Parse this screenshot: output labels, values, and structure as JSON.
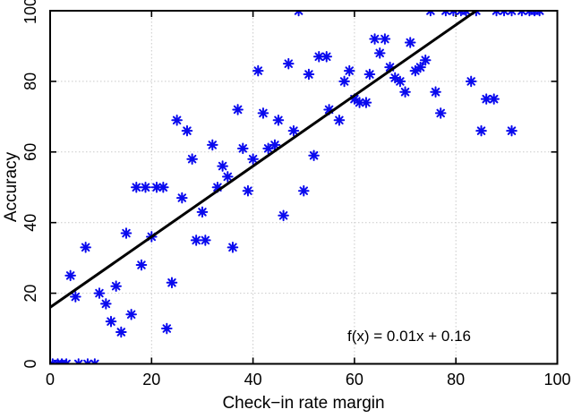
{
  "figure": {
    "xlabel": "Check−in rate margin",
    "ylabel": "Accuracy",
    "annotation": "f(x) = 0.01x + 0.16",
    "colors": {
      "marker": "#0A0AEE",
      "fit_line": "#000000",
      "grid": "#C9C9C9",
      "axis": "#000000",
      "background": "#FFFFFF"
    }
  },
  "chart_data": {
    "type": "scatter",
    "title": "",
    "xlabel": "Check−in rate margin",
    "ylabel": "Accuracy",
    "xlim": [
      0,
      100
    ],
    "ylim": [
      0,
      100
    ],
    "x_tick_values": [
      0,
      20,
      40,
      60,
      80,
      100
    ],
    "y_tick_values": [
      0,
      20,
      40,
      60,
      80,
      100
    ],
    "x_tick_labels": [
      "0",
      "20",
      "40",
      "60",
      "80",
      "100"
    ],
    "y_tick_labels": [
      "0",
      "20",
      "40",
      "60",
      "80",
      "100"
    ],
    "grid": true,
    "legend": "none",
    "marker": "asterisk",
    "annotation": {
      "text": "f(x) = 0.01x + 0.16",
      "x": 71,
      "y": 8
    },
    "fit_line": {
      "equation": "f(x) = 0.01x + 0.16",
      "x1": 0,
      "y1": 16,
      "x2": 84,
      "y2": 100
    },
    "points": [
      [
        0.5,
        0
      ],
      [
        1.5,
        0
      ],
      [
        2.3,
        0
      ],
      [
        3.2,
        0
      ],
      [
        5.6,
        0
      ],
      [
        7.4,
        0
      ],
      [
        8.8,
        0
      ],
      [
        4,
        25
      ],
      [
        5,
        19
      ],
      [
        7,
        33
      ],
      [
        9.7,
        20
      ],
      [
        11,
        17
      ],
      [
        12,
        12
      ],
      [
        13,
        22
      ],
      [
        14,
        9
      ],
      [
        16,
        14
      ],
      [
        18,
        28
      ],
      [
        23,
        10
      ],
      [
        24,
        23
      ],
      [
        15,
        37
      ],
      [
        17,
        50
      ],
      [
        18.8,
        50
      ],
      [
        20,
        36
      ],
      [
        21,
        50
      ],
      [
        22.3,
        50
      ],
      [
        26,
        47
      ],
      [
        28.8,
        35
      ],
      [
        30,
        43
      ],
      [
        30.6,
        35
      ],
      [
        33,
        50
      ],
      [
        36,
        33
      ],
      [
        39,
        49
      ],
      [
        46,
        42
      ],
      [
        50,
        49
      ],
      [
        28,
        58
      ],
      [
        32,
        62
      ],
      [
        34,
        56
      ],
      [
        35,
        53
      ],
      [
        38,
        61
      ],
      [
        40,
        58
      ],
      [
        43,
        61
      ],
      [
        44.3,
        62
      ],
      [
        52,
        59
      ],
      [
        25,
        69
      ],
      [
        27,
        66
      ],
      [
        37,
        72
      ],
      [
        42,
        71
      ],
      [
        45,
        69
      ],
      [
        48,
        66
      ],
      [
        55,
        72
      ],
      [
        57,
        69
      ],
      [
        77,
        71
      ],
      [
        85,
        66
      ],
      [
        91,
        66
      ],
      [
        41,
        83
      ],
      [
        47,
        85
      ],
      [
        51,
        82
      ],
      [
        53,
        87
      ],
      [
        54.5,
        87
      ],
      [
        59,
        83
      ],
      [
        58,
        80
      ],
      [
        60,
        75
      ],
      [
        61,
        74
      ],
      [
        62.3,
        74
      ],
      [
        63,
        82
      ],
      [
        65,
        88
      ],
      [
        67,
        84
      ],
      [
        68,
        81
      ],
      [
        69,
        80
      ],
      [
        70,
        77
      ],
      [
        72,
        83
      ],
      [
        73,
        84
      ],
      [
        74,
        86
      ],
      [
        76,
        77
      ],
      [
        83,
        80
      ],
      [
        86,
        75
      ],
      [
        87.5,
        75
      ],
      [
        64,
        92
      ],
      [
        66,
        92
      ],
      [
        71,
        91
      ],
      [
        49,
        100
      ],
      [
        75,
        100
      ],
      [
        78,
        100
      ],
      [
        79.5,
        100
      ],
      [
        81,
        100
      ],
      [
        82,
        100
      ],
      [
        84,
        100
      ],
      [
        88,
        100
      ],
      [
        89.5,
        100
      ],
      [
        91,
        100
      ],
      [
        93,
        100
      ],
      [
        94.5,
        100
      ],
      [
        95.5,
        100
      ],
      [
        96.5,
        100
      ]
    ]
  }
}
